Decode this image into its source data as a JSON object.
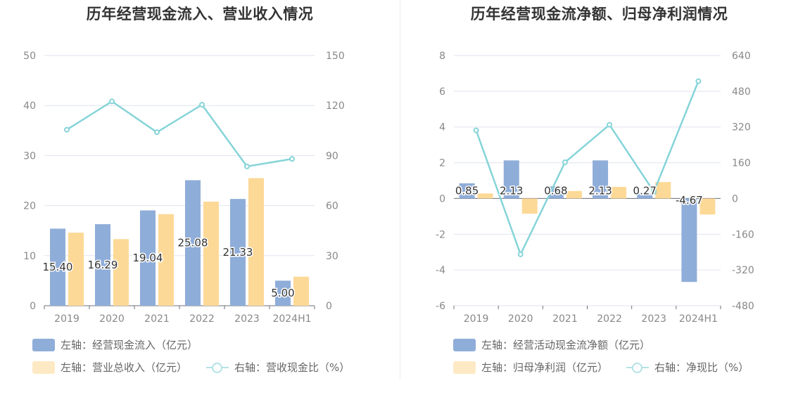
{
  "colors": {
    "bar_primary": "#8fadd9",
    "bar_secondary": "#fdd997",
    "line": "#86d4d8",
    "grid": "#e0e3ef",
    "axis_text": "#888888",
    "label_text": "#333333"
  },
  "chart_data": [
    {
      "type": "bar+line",
      "title": "历年经营现金流入、营业收入情况",
      "categories": [
        "2019",
        "2020",
        "2021",
        "2022",
        "2023",
        "2024H1"
      ],
      "y_left": {
        "min": 0,
        "max": 50,
        "ticks": [
          "0",
          "10",
          "20",
          "30",
          "40",
          "50"
        ]
      },
      "y_right": {
        "min": 0,
        "max": 150,
        "ticks": [
          "0",
          "30",
          "60",
          "90",
          "120",
          "150"
        ]
      },
      "series": [
        {
          "name": "左轴：经营现金流入（亿元）",
          "type": "bar",
          "axis": "left",
          "values": [
            15.4,
            16.29,
            19.04,
            25.08,
            21.33,
            5.0
          ],
          "labels": [
            "15.40",
            "16.29",
            "19.04",
            "25.08",
            "21.33",
            "5.00"
          ]
        },
        {
          "name": "左轴：营业总收入（亿元）",
          "type": "bar",
          "axis": "left",
          "values": [
            14.6,
            13.3,
            18.3,
            20.8,
            25.5,
            5.8
          ]
        },
        {
          "name": "右轴：营收现金比（%）",
          "type": "line",
          "axis": "right",
          "values": [
            105.5,
            122.5,
            104.0,
            120.5,
            83.5,
            88.0
          ]
        }
      ]
    },
    {
      "type": "bar+line",
      "title": "历年经营现金流净额、归母净利润情况",
      "categories": [
        "2019",
        "2020",
        "2021",
        "2022",
        "2023",
        "2024H1"
      ],
      "y_left": {
        "min": -6,
        "max": 8,
        "ticks": [
          "-6",
          "-4",
          "-2",
          "0",
          "2",
          "4",
          "6",
          "8"
        ]
      },
      "y_right": {
        "min": -480,
        "max": 640,
        "ticks": [
          "-480",
          "-320",
          "-160",
          "0",
          "160",
          "320",
          "480",
          "640"
        ]
      },
      "series": [
        {
          "name": "左轴：经营活动现金流净额（亿元）",
          "type": "bar",
          "axis": "left",
          "values": [
            0.85,
            2.13,
            0.68,
            2.13,
            0.27,
            -4.67
          ],
          "labels": [
            "0.85",
            "2.13",
            "0.68",
            "2.13",
            "0.27",
            "-4.67"
          ]
        },
        {
          "name": "左轴：归母净利润（亿元）",
          "type": "bar",
          "axis": "left",
          "values": [
            0.28,
            -0.85,
            0.42,
            0.65,
            0.92,
            -0.9
          ]
        },
        {
          "name": "右轴：净现比（%）",
          "type": "line",
          "axis": "right",
          "values": [
            305,
            -250,
            162,
            330,
            30,
            525
          ]
        }
      ]
    }
  ]
}
